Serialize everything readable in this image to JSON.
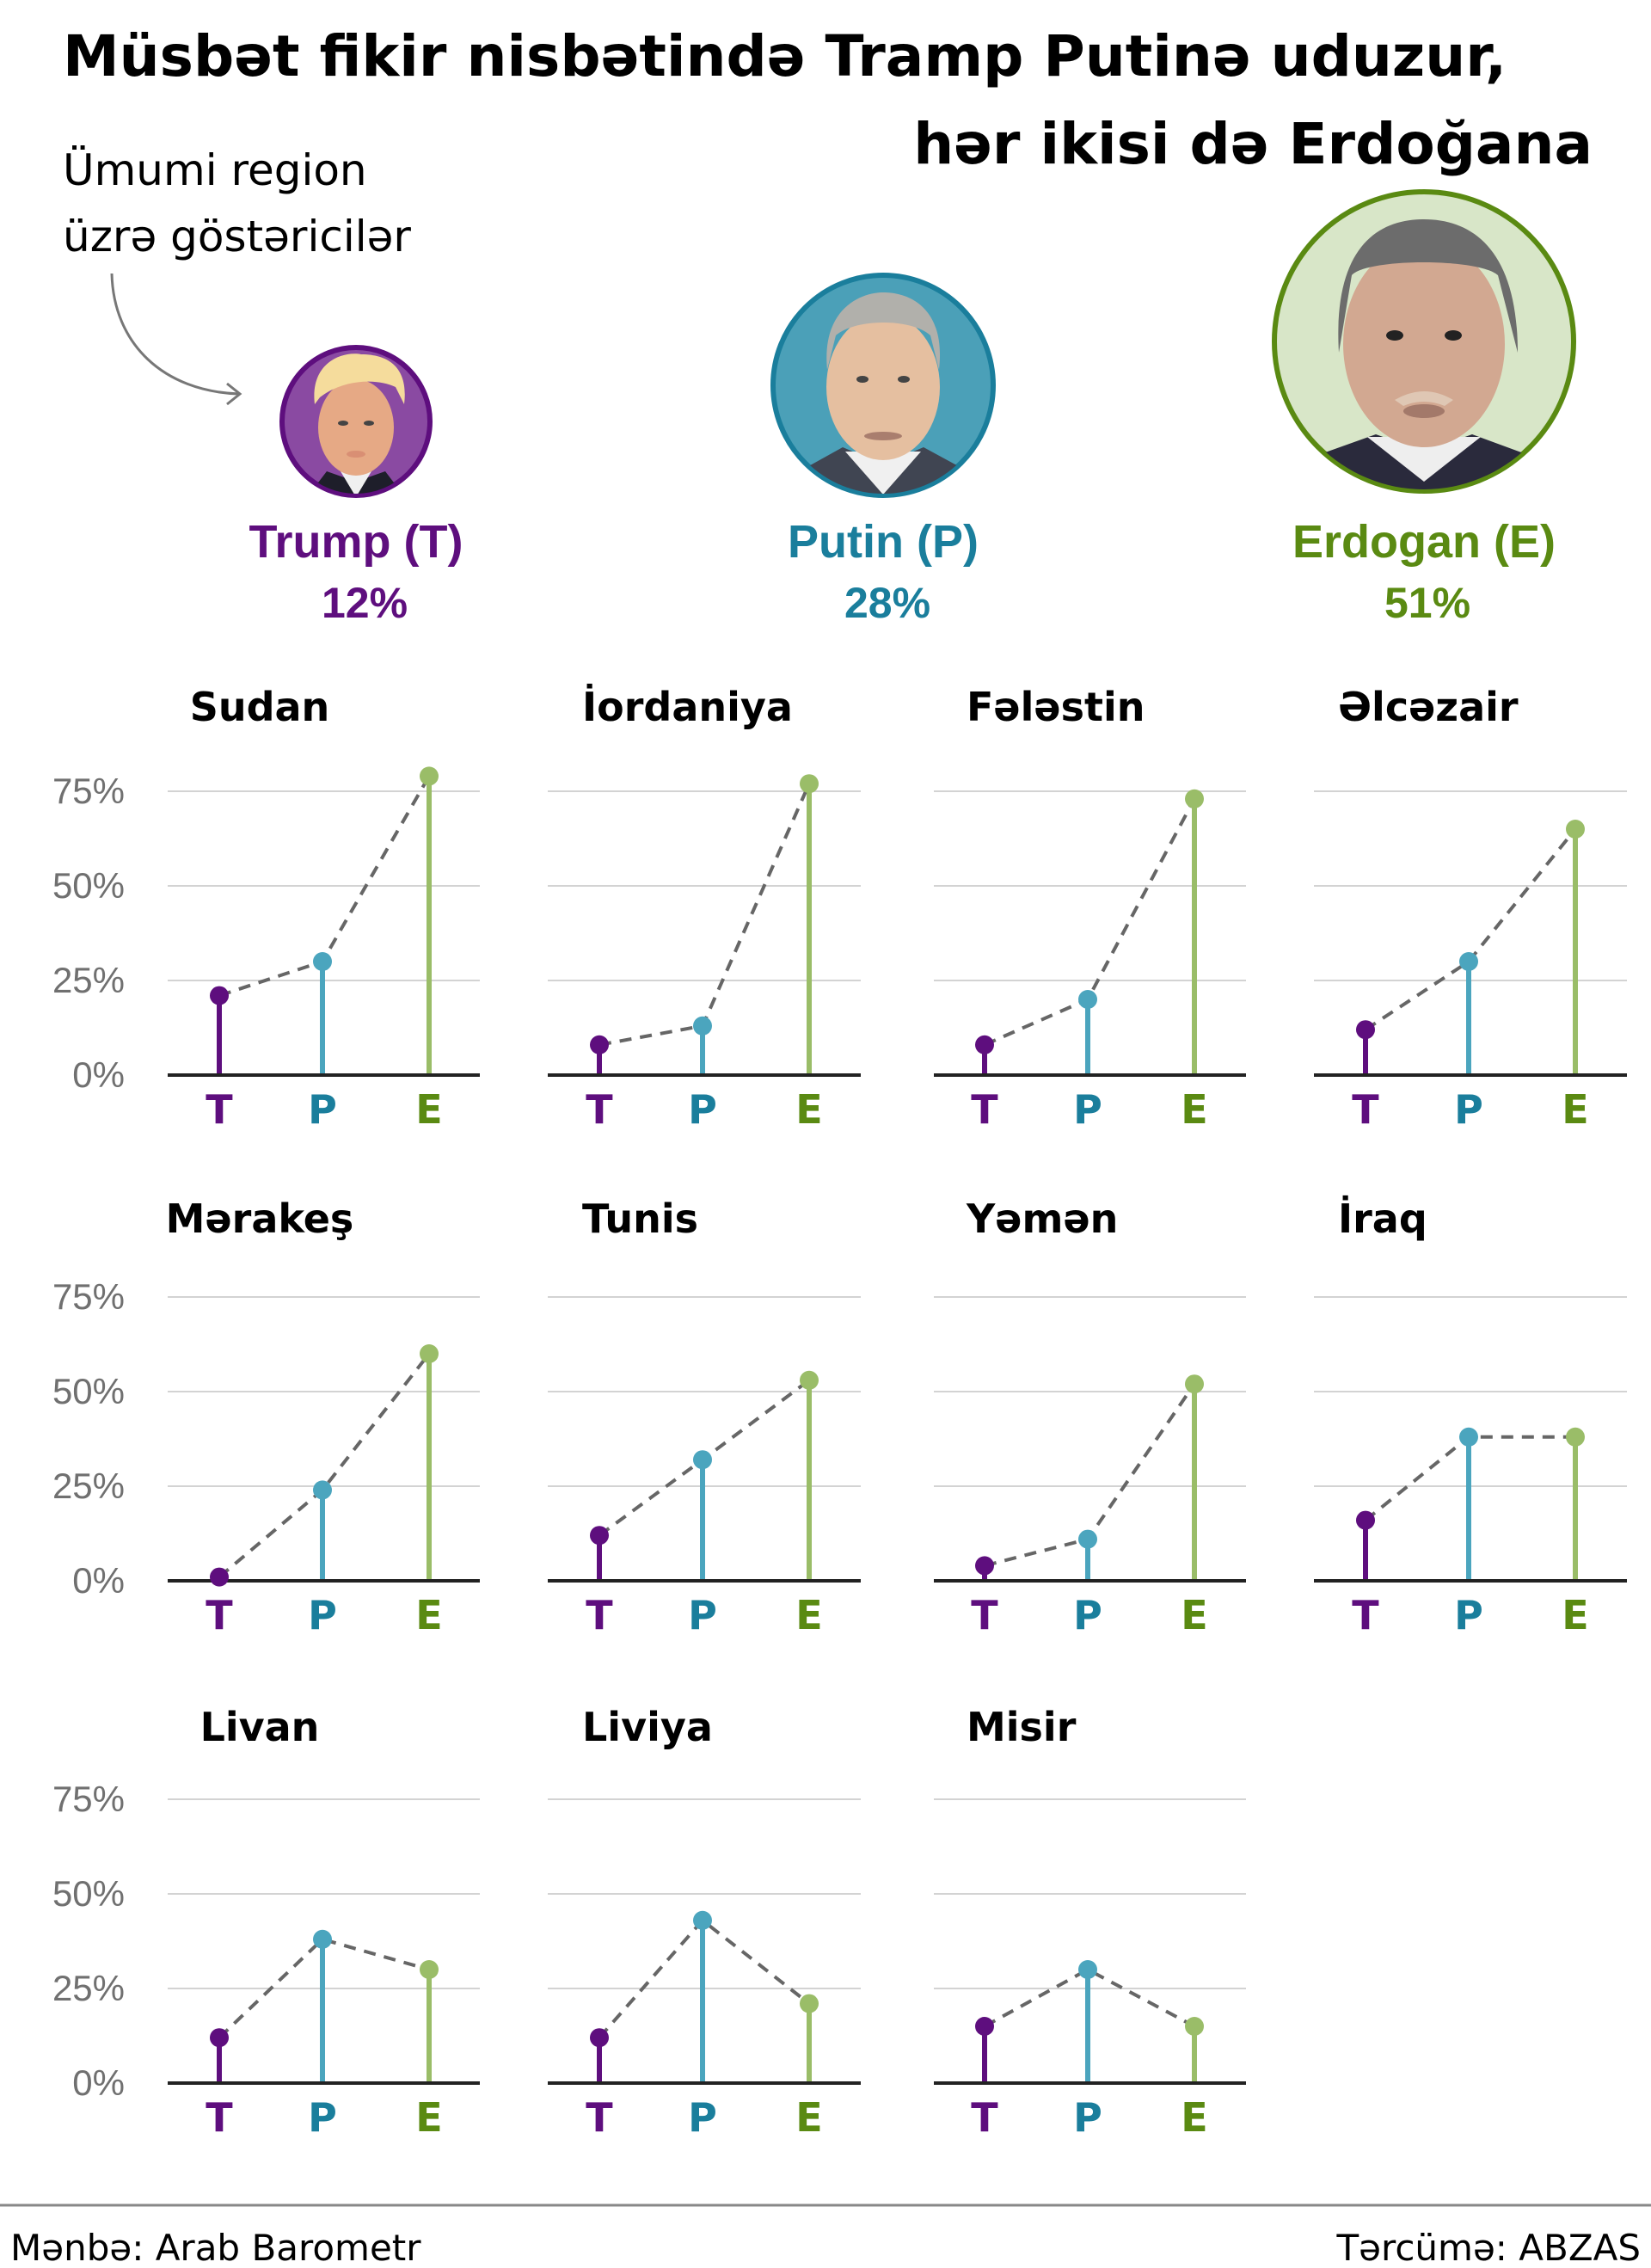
{
  "header": {
    "title_line1": "Müsbət fikir nisbətində Tramp Putinə uduzur,",
    "title_line2": "hər ikisi də Erdoğana",
    "annotation_line1": "Ümumi region",
    "annotation_line2": "üzrə göstəricilər"
  },
  "colors": {
    "trump": "#5e0e7e",
    "trump_light": "#8a4aa2",
    "putin": "#1a7e9c",
    "putin_light": "#4ba5be",
    "erdogan": "#5a8a12",
    "erdogan_light": "#9abd68",
    "erdogan_bg": "#d8e6c8"
  },
  "people": [
    {
      "key": "T",
      "name": "Trump (T)",
      "overall": "12%",
      "icon": "trump-portrait-icon"
    },
    {
      "key": "P",
      "name": "Putin (P)",
      "overall": "28%",
      "icon": "putin-portrait-icon"
    },
    {
      "key": "E",
      "name": "Erdogan (E)",
      "overall": "51%",
      "icon": "erdogan-portrait-icon"
    }
  ],
  "chart_data": {
    "type": "lollipop",
    "title": "Müsbət fikir nisbətində Tramp Putinə uduzur, hər ikisi də Erdoğana",
    "categories": [
      "T",
      "P",
      "E"
    ],
    "y_ticks": [
      "0%",
      "25%",
      "50%",
      "75%"
    ],
    "y_tick_values": [
      0,
      25,
      50,
      75
    ],
    "ylim": [
      0,
      75
    ],
    "grid": true,
    "overall": {
      "T": 12,
      "P": 28,
      "E": 51
    },
    "panels": [
      {
        "country": "Sudan",
        "values": [
          21,
          30,
          79
        ]
      },
      {
        "country": "İordaniya",
        "values": [
          8,
          13,
          77
        ]
      },
      {
        "country": "Fələstin",
        "values": [
          8,
          20,
          73
        ]
      },
      {
        "country": "Əlcəzair",
        "values": [
          12,
          30,
          65
        ]
      },
      {
        "country": "Mərakeş",
        "values": [
          1,
          24,
          60
        ]
      },
      {
        "country": "Tunis",
        "values": [
          12,
          32,
          53
        ]
      },
      {
        "country": "Yəmən",
        "values": [
          4,
          11,
          52
        ]
      },
      {
        "country": "İraq",
        "values": [
          16,
          38,
          38
        ]
      },
      {
        "country": "Livan",
        "values": [
          12,
          38,
          30
        ]
      },
      {
        "country": "Liviya",
        "values": [
          12,
          43,
          21
        ]
      },
      {
        "country": "Misir",
        "values": [
          15,
          30,
          15
        ]
      }
    ]
  },
  "footer": {
    "source": "Mənbə: Arab Barometr",
    "translation": "Tərcümə: ABZAS"
  }
}
